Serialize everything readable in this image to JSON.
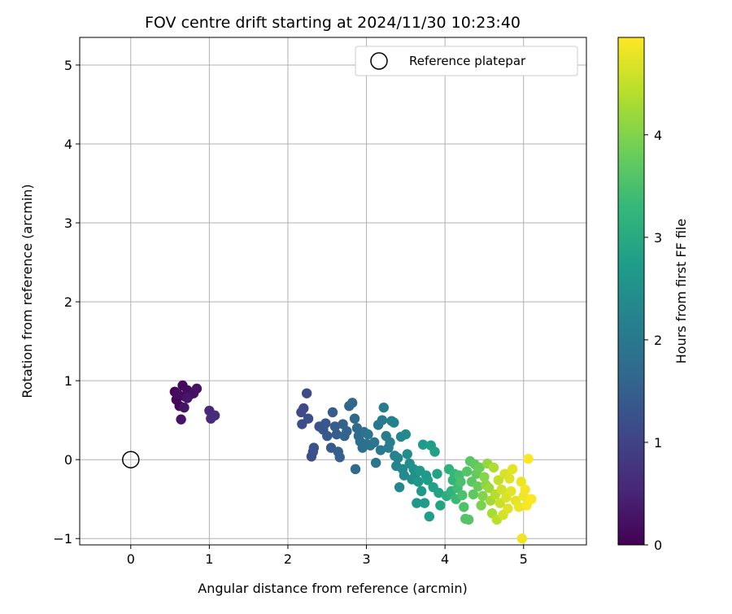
{
  "chart_data": {
    "type": "scatter",
    "title": "FOV centre drift starting at 2024/11/30 10:23:40",
    "xlabel": "Angular distance from reference (arcmin)",
    "ylabel": "Rotation from reference (arcmin)",
    "xlim": [
      -0.65,
      5.8
    ],
    "ylim": [
      -1.08,
      5.35
    ],
    "xticks": [
      0,
      1,
      2,
      3,
      4,
      5
    ],
    "yticks": [
      -1,
      0,
      1,
      2,
      3,
      4,
      5
    ],
    "grid": true,
    "legend": {
      "position": "top-right",
      "entries": [
        "Reference platepar"
      ]
    },
    "reference_point": {
      "x": 0,
      "y": 0,
      "label": "Reference platepar"
    },
    "colorbar": {
      "label": "Hours from first FF file",
      "range": [
        0,
        4.95
      ],
      "ticks": [
        0,
        1,
        2,
        3,
        4
      ],
      "colormap": "viridis",
      "colors": [
        "#440154",
        "#482878",
        "#3e4989",
        "#31688e",
        "#26828e",
        "#1f9e89",
        "#35b779",
        "#6ece58",
        "#b5de2b",
        "#fde725"
      ]
    },
    "points": [
      [
        0.56,
        0.86,
        0.05
      ],
      [
        0.58,
        0.76,
        0.07
      ],
      [
        0.62,
        0.68,
        0.09
      ],
      [
        0.66,
        0.94,
        0.11
      ],
      [
        0.69,
        0.8,
        0.13
      ],
      [
        0.72,
        0.88,
        0.15
      ],
      [
        0.6,
        0.83,
        0.17
      ],
      [
        0.75,
        0.82,
        0.2
      ],
      [
        0.8,
        0.84,
        0.22
      ],
      [
        0.84,
        0.9,
        0.24
      ],
      [
        0.64,
        0.51,
        0.26
      ],
      [
        0.68,
        0.66,
        0.28
      ],
      [
        0.72,
        0.78,
        0.3
      ],
      [
        1.0,
        0.62,
        0.55
      ],
      [
        1.02,
        0.52,
        0.58
      ],
      [
        1.07,
        0.56,
        0.62
      ],
      [
        2.17,
        0.6,
        1.1
      ],
      [
        2.2,
        0.65,
        1.12
      ],
      [
        2.24,
        0.84,
        1.15
      ],
      [
        2.18,
        0.45,
        1.18
      ],
      [
        2.26,
        0.52,
        1.2
      ],
      [
        2.3,
        0.04,
        1.22
      ],
      [
        2.32,
        0.1,
        1.25
      ],
      [
        2.33,
        0.15,
        1.28
      ],
      [
        2.4,
        0.42,
        1.3
      ],
      [
        2.45,
        0.38,
        1.32
      ],
      [
        2.48,
        0.46,
        1.35
      ],
      [
        2.5,
        0.3,
        1.38
      ],
      [
        2.55,
        0.15,
        1.4
      ],
      [
        2.57,
        0.6,
        1.42
      ],
      [
        2.6,
        0.42,
        1.45
      ],
      [
        2.62,
        0.32,
        1.48
      ],
      [
        2.64,
        0.1,
        1.5
      ],
      [
        2.66,
        0.03,
        1.52
      ],
      [
        2.7,
        0.45,
        1.55
      ],
      [
        2.72,
        0.3,
        1.58
      ],
      [
        2.75,
        0.36,
        1.6
      ],
      [
        2.78,
        0.68,
        1.62
      ],
      [
        2.82,
        0.72,
        1.65
      ],
      [
        2.85,
        0.52,
        1.68
      ],
      [
        2.86,
        -0.12,
        1.7
      ],
      [
        2.88,
        0.4,
        1.72
      ],
      [
        2.9,
        0.3,
        1.75
      ],
      [
        2.92,
        0.23,
        1.78
      ],
      [
        2.95,
        0.15,
        1.8
      ],
      [
        2.97,
        0.35,
        1.82
      ],
      [
        3.0,
        0.2,
        1.85
      ],
      [
        3.02,
        0.32,
        1.88
      ],
      [
        3.05,
        0.18,
        1.9
      ],
      [
        3.1,
        0.22,
        1.92
      ],
      [
        3.12,
        -0.04,
        1.95
      ],
      [
        3.15,
        0.44,
        1.98
      ],
      [
        3.18,
        0.12,
        2.0
      ],
      [
        3.2,
        0.5,
        2.02
      ],
      [
        3.22,
        0.66,
        2.05
      ],
      [
        3.25,
        0.3,
        2.08
      ],
      [
        3.28,
        0.15,
        2.1
      ],
      [
        3.3,
        0.22,
        2.12
      ],
      [
        3.32,
        0.49,
        2.15
      ],
      [
        3.35,
        0.47,
        2.18
      ],
      [
        3.36,
        0.05,
        2.2
      ],
      [
        3.38,
        -0.08,
        2.22
      ],
      [
        3.4,
        0.02,
        2.25
      ],
      [
        3.42,
        -0.35,
        2.28
      ],
      [
        3.44,
        0.29,
        2.3
      ],
      [
        3.46,
        -0.12,
        2.32
      ],
      [
        3.48,
        -0.2,
        2.35
      ],
      [
        3.5,
        0.32,
        2.38
      ],
      [
        3.52,
        0.07,
        2.4
      ],
      [
        3.55,
        -0.05,
        2.42
      ],
      [
        3.58,
        -0.25,
        2.45
      ],
      [
        3.6,
        -0.12,
        2.48
      ],
      [
        3.62,
        -0.2,
        2.5
      ],
      [
        3.64,
        -0.55,
        2.6
      ],
      [
        3.66,
        -0.28,
        2.62
      ],
      [
        3.68,
        -0.14,
        2.64
      ],
      [
        3.7,
        -0.4,
        2.66
      ],
      [
        3.72,
        0.19,
        2.68
      ],
      [
        3.74,
        -0.55,
        2.7
      ],
      [
        3.76,
        -0.2,
        2.72
      ],
      [
        3.78,
        -0.26,
        2.74
      ],
      [
        3.8,
        -0.72,
        2.76
      ],
      [
        3.82,
        0.18,
        2.78
      ],
      [
        3.85,
        -0.35,
        2.8
      ],
      [
        3.87,
        0.1,
        2.82
      ],
      [
        3.9,
        -0.18,
        2.84
      ],
      [
        3.92,
        -0.42,
        2.86
      ],
      [
        3.94,
        -0.58,
        2.88
      ],
      [
        4.02,
        -0.46,
        3.1
      ],
      [
        4.05,
        -0.12,
        3.15
      ],
      [
        4.08,
        -0.4,
        3.2
      ],
      [
        4.1,
        -0.26,
        3.25
      ],
      [
        4.12,
        -0.18,
        3.3
      ],
      [
        4.14,
        -0.5,
        3.35
      ],
      [
        4.16,
        -0.36,
        3.4
      ],
      [
        4.18,
        -0.2,
        3.45
      ],
      [
        4.2,
        -0.28,
        3.5
      ],
      [
        4.22,
        -0.45,
        3.52
      ],
      [
        4.24,
        -0.6,
        3.55
      ],
      [
        4.26,
        -0.75,
        3.58
      ],
      [
        4.28,
        -0.15,
        3.6
      ],
      [
        4.3,
        -0.76,
        3.62
      ],
      [
        4.32,
        -0.02,
        3.65
      ],
      [
        4.34,
        -0.28,
        3.68
      ],
      [
        4.36,
        -0.44,
        3.7
      ],
      [
        4.38,
        -0.06,
        3.72
      ],
      [
        4.4,
        -0.18,
        3.75
      ],
      [
        4.42,
        -0.34,
        3.78
      ],
      [
        4.44,
        -0.1,
        3.8
      ],
      [
        4.46,
        -0.58,
        3.95
      ],
      [
        4.48,
        -0.46,
        4.0
      ],
      [
        4.5,
        -0.22,
        4.05
      ],
      [
        4.52,
        -0.32,
        4.1
      ],
      [
        4.54,
        -0.05,
        4.15
      ],
      [
        4.56,
        -0.36,
        4.2
      ],
      [
        4.58,
        -0.52,
        4.25
      ],
      [
        4.6,
        -0.68,
        4.3
      ],
      [
        4.62,
        -0.1,
        4.35
      ],
      [
        4.64,
        -0.44,
        4.4
      ],
      [
        4.66,
        -0.76,
        4.45
      ],
      [
        4.68,
        -0.26,
        4.5
      ],
      [
        4.7,
        -0.55,
        4.55
      ],
      [
        4.72,
        -0.38,
        4.6
      ],
      [
        4.74,
        -0.7,
        4.62
      ],
      [
        4.76,
        -0.18,
        4.65
      ],
      [
        4.78,
        -0.48,
        4.68
      ],
      [
        4.8,
        -0.62,
        4.7
      ],
      [
        4.82,
        -0.24,
        4.72
      ],
      [
        4.84,
        -0.4,
        4.74
      ],
      [
        4.86,
        -0.12,
        4.76
      ],
      [
        4.9,
        -0.52,
        4.78
      ],
      [
        4.94,
        -0.6,
        4.8
      ],
      [
        4.97,
        -0.28,
        4.82
      ],
      [
        4.98,
        -1.0,
        4.84
      ],
      [
        5.0,
        -0.46,
        4.86
      ],
      [
        5.02,
        -0.38,
        4.88
      ],
      [
        5.04,
        -0.58,
        4.9
      ],
      [
        5.06,
        0.01,
        4.92
      ],
      [
        5.1,
        -0.5,
        4.94
      ]
    ]
  }
}
